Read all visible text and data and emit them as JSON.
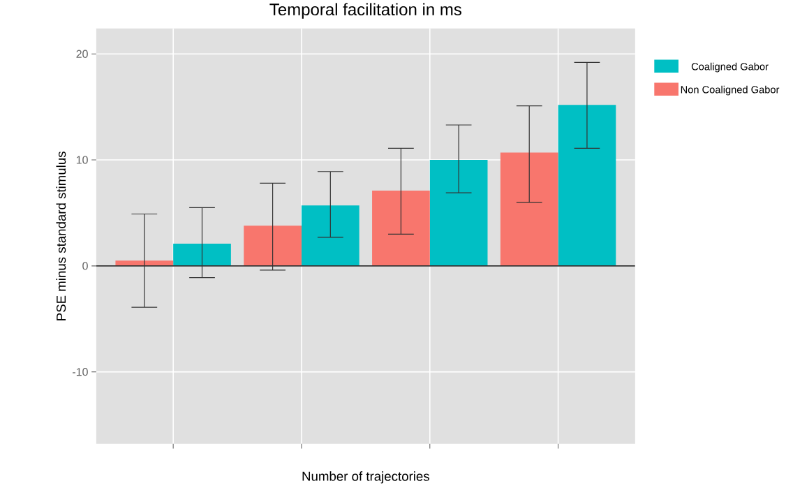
{
  "chart_data": {
    "type": "bar",
    "title": "Temporal facilitation in ms",
    "xlabel": "Number of trajectories",
    "ylabel": "PSE minus standard stimulus",
    "categories": [
      null,
      null,
      null,
      null
    ],
    "series": [
      {
        "name": "Coaligned Gabor",
        "color": "#00bfc4",
        "values": [
          2.1,
          5.7,
          10.0,
          15.2
        ],
        "errors": [
          [
            -1.1,
            5.5
          ],
          [
            2.7,
            8.9
          ],
          [
            6.9,
            13.3
          ],
          [
            11.1,
            19.2
          ]
        ]
      },
      {
        "name": "Non Coaligned Gabor",
        "color": "#f8766d",
        "values": [
          0.5,
          3.8,
          7.1,
          10.7
        ],
        "errors": [
          [
            -3.9,
            4.9
          ],
          [
            -0.4,
            7.8
          ],
          [
            3.0,
            11.1
          ],
          [
            6.0,
            15.1
          ]
        ]
      }
    ],
    "ylim": [
      -16.8,
      22.4
    ],
    "yticks": [
      -10,
      0,
      10,
      20
    ],
    "grid": true,
    "legend": "right",
    "tick_labels": "y",
    "ref_lines": [
      {
        "axis": "y",
        "value": 0,
        "color": "#333333"
      }
    ]
  }
}
